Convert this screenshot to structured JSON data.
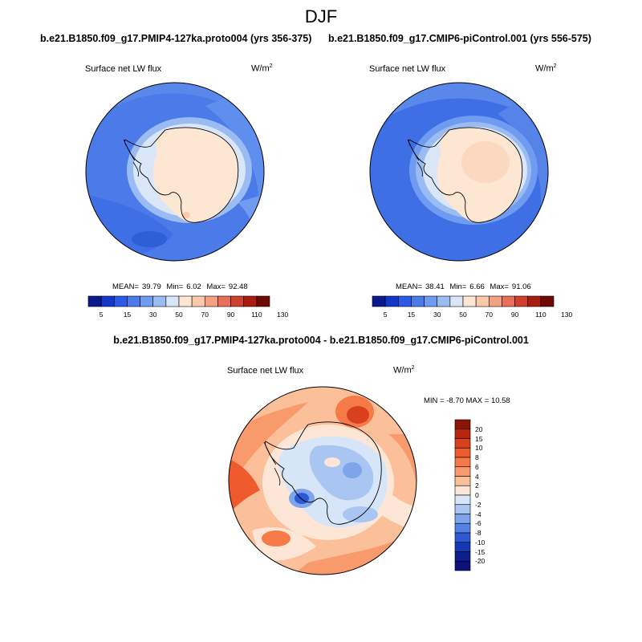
{
  "figure": {
    "title": "DJF",
    "panel_left": {
      "title": "b.e21.B1850.f09_g17.PMIP4-127ka.proto004 (yrs 356-375)",
      "variable": "Surface net LW flux",
      "units_base": "W/m",
      "units_exp": "2",
      "mean_label": "MEAN=",
      "mean": "39.79",
      "min_label": "Min=",
      "min": "6.02",
      "max_label": "Max=",
      "max": "92.48"
    },
    "panel_right": {
      "title": "b.e21.B1850.f09_g17.CMIP6-piControl.001 (yrs 556-575)",
      "variable": "Surface net LW flux",
      "units_base": "W/m",
      "units_exp": "2",
      "mean_label": "MEAN=",
      "mean": "38.41",
      "min_label": "Min=",
      "min": "6.66",
      "max_label": "Max=",
      "max": "91.06"
    },
    "panel_diff": {
      "title": "b.e21.B1850.f09_g17.PMIP4-127ka.proto004 - b.e21.B1850.f09_g17.CMIP6-piControl.001",
      "variable": "Surface net LW flux",
      "units_base": "W/m",
      "units_exp": "2",
      "minmax_text": "MIN = -8.70 MAX = 10.58"
    },
    "colorbar_abs": {
      "ticks": [
        "5",
        "15",
        "30",
        "50",
        "70",
        "90",
        "110",
        "130"
      ],
      "colors": [
        "#0a1a8c",
        "#1437c8",
        "#2a5ae6",
        "#4a7be8",
        "#6f9cf0",
        "#9bbcf2",
        "#d8e6f8",
        "#fde6d2",
        "#fbc8aa",
        "#f4a183",
        "#e8705a",
        "#d04030",
        "#a81c12",
        "#6e0a05"
      ]
    },
    "colorbar_diff": {
      "ticks": [
        "20",
        "15",
        "10",
        "8",
        "6",
        "4",
        "2",
        "0",
        "-2",
        "-4",
        "-6",
        "-8",
        "-10",
        "-15",
        "-20"
      ],
      "colors": [
        "#8c1505",
        "#b8250c",
        "#d8401e",
        "#ee5a2c",
        "#f57a48",
        "#f99a6c",
        "#fbbf9a",
        "#fde6d6",
        "#d6e6f8",
        "#a9c6f2",
        "#7ea4ec",
        "#5582e6",
        "#2d5ad4",
        "#1438b4",
        "#0c1f8a",
        "#0a137a"
      ]
    }
  }
}
